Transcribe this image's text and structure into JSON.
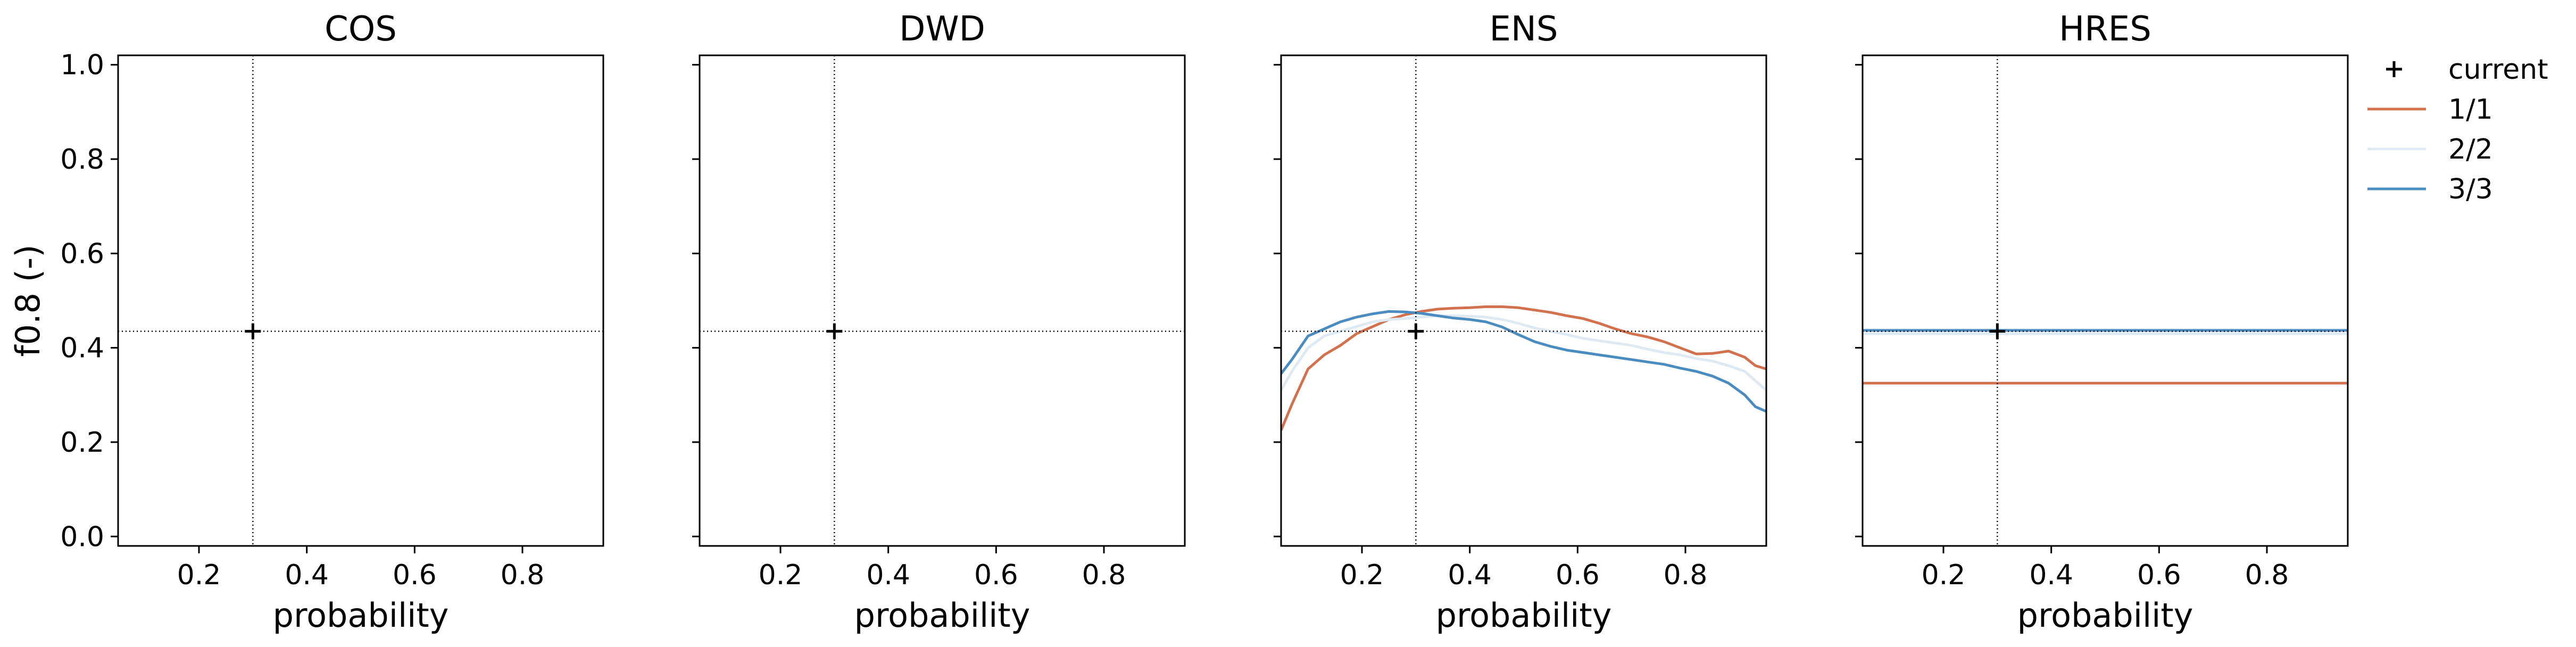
{
  "colors": {
    "axes": "#000000",
    "series_1_1": "#d2714d",
    "series_2_2": "#dfe9f2",
    "series_3_3": "#4a8cbf",
    "marker": "#000000"
  },
  "legend": {
    "placement": "right-outside-top",
    "items": [
      {
        "label": "current",
        "symbol": "plus",
        "color": "#000000"
      },
      {
        "label": "1/1",
        "symbol": "line",
        "color": "#d2714d"
      },
      {
        "label": "2/2",
        "symbol": "line",
        "color": "#dfe9f2"
      },
      {
        "label": "3/3",
        "symbol": "line",
        "color": "#4a8cbf"
      }
    ]
  },
  "chart_data": [
    {
      "type": "line",
      "title": "COS",
      "xlabel": "probability",
      "ylabel": "f0.8 (-)",
      "xlim": [
        0.05,
        0.95
      ],
      "ylim": [
        -0.02,
        1.02
      ],
      "xticks": [
        "0.2",
        "0.4",
        "0.6",
        "0.8"
      ],
      "yticks": [
        "0.0",
        "0.2",
        "0.4",
        "0.6",
        "0.8",
        "1.0"
      ],
      "show_yticklabels": true,
      "current": {
        "x": 0.3,
        "y": 0.435
      },
      "series": []
    },
    {
      "type": "line",
      "title": "DWD",
      "xlabel": "probability",
      "ylabel": "",
      "xlim": [
        0.05,
        0.95
      ],
      "ylim": [
        -0.02,
        1.02
      ],
      "xticks": [
        "0.2",
        "0.4",
        "0.6",
        "0.8"
      ],
      "yticks": [
        "0.0",
        "0.2",
        "0.4",
        "0.6",
        "0.8",
        "1.0"
      ],
      "show_yticklabels": false,
      "current": {
        "x": 0.3,
        "y": 0.435
      },
      "series": []
    },
    {
      "type": "line",
      "title": "ENS",
      "xlabel": "probability",
      "ylabel": "",
      "xlim": [
        0.05,
        0.95
      ],
      "ylim": [
        -0.02,
        1.02
      ],
      "xticks": [
        "0.2",
        "0.4",
        "0.6",
        "0.8"
      ],
      "yticks": [
        "0.0",
        "0.2",
        "0.4",
        "0.6",
        "0.8",
        "1.0"
      ],
      "show_yticklabels": false,
      "current": {
        "x": 0.3,
        "y": 0.435
      },
      "series": [
        {
          "name": "1/1",
          "color": "#d2714d",
          "x": [
            0.05,
            0.07,
            0.1,
            0.13,
            0.16,
            0.19,
            0.22,
            0.25,
            0.28,
            0.31,
            0.34,
            0.37,
            0.4,
            0.43,
            0.46,
            0.49,
            0.52,
            0.55,
            0.58,
            0.61,
            0.64,
            0.67,
            0.7,
            0.73,
            0.76,
            0.79,
            0.82,
            0.85,
            0.88,
            0.91,
            0.93,
            0.95
          ],
          "y": [
            0.225,
            0.28,
            0.355,
            0.385,
            0.405,
            0.43,
            0.445,
            0.46,
            0.47,
            0.477,
            0.482,
            0.484,
            0.485,
            0.487,
            0.487,
            0.485,
            0.48,
            0.475,
            0.468,
            0.462,
            0.452,
            0.44,
            0.43,
            0.423,
            0.413,
            0.4,
            0.387,
            0.388,
            0.393,
            0.38,
            0.362,
            0.355
          ]
        },
        {
          "name": "2/2",
          "color": "#dfe9f2",
          "x": [
            0.05,
            0.07,
            0.1,
            0.13,
            0.16,
            0.19,
            0.22,
            0.25,
            0.28,
            0.31,
            0.34,
            0.37,
            0.4,
            0.43,
            0.46,
            0.49,
            0.52,
            0.55,
            0.58,
            0.61,
            0.64,
            0.67,
            0.7,
            0.73,
            0.76,
            0.79,
            0.82,
            0.85,
            0.88,
            0.91,
            0.93,
            0.95
          ],
          "y": [
            0.31,
            0.35,
            0.4,
            0.425,
            0.435,
            0.445,
            0.455,
            0.46,
            0.462,
            0.465,
            0.468,
            0.468,
            0.467,
            0.465,
            0.46,
            0.452,
            0.442,
            0.435,
            0.428,
            0.42,
            0.415,
            0.41,
            0.405,
            0.397,
            0.39,
            0.385,
            0.377,
            0.372,
            0.362,
            0.35,
            0.33,
            0.31
          ]
        },
        {
          "name": "3/3",
          "color": "#4a8cbf",
          "x": [
            0.05,
            0.07,
            0.1,
            0.13,
            0.16,
            0.19,
            0.22,
            0.25,
            0.28,
            0.31,
            0.34,
            0.37,
            0.4,
            0.43,
            0.46,
            0.49,
            0.52,
            0.55,
            0.58,
            0.61,
            0.64,
            0.67,
            0.7,
            0.73,
            0.76,
            0.79,
            0.82,
            0.85,
            0.88,
            0.91,
            0.93,
            0.95
          ],
          "y": [
            0.345,
            0.375,
            0.425,
            0.44,
            0.455,
            0.465,
            0.472,
            0.477,
            0.476,
            0.473,
            0.468,
            0.463,
            0.46,
            0.455,
            0.444,
            0.428,
            0.413,
            0.403,
            0.395,
            0.39,
            0.385,
            0.38,
            0.375,
            0.37,
            0.365,
            0.357,
            0.35,
            0.34,
            0.325,
            0.3,
            0.275,
            0.265
          ]
        }
      ]
    },
    {
      "type": "line",
      "title": "HRES",
      "xlabel": "probability",
      "ylabel": "",
      "xlim": [
        0.05,
        0.95
      ],
      "ylim": [
        -0.02,
        1.02
      ],
      "xticks": [
        "0.2",
        "0.4",
        "0.6",
        "0.8"
      ],
      "yticks": [
        "0.0",
        "0.2",
        "0.4",
        "0.6",
        "0.8",
        "1.0"
      ],
      "show_yticklabels": false,
      "current": {
        "x": 0.3,
        "y": 0.435
      },
      "series": [
        {
          "name": "1/1",
          "color": "#d2714d",
          "x": [
            0.05,
            0.95
          ],
          "y": [
            0.325,
            0.325
          ]
        },
        {
          "name": "2/2",
          "color": "#dfe9f2",
          "x": [
            0.05,
            0.95
          ],
          "y": [
            0.43,
            0.43
          ]
        },
        {
          "name": "3/3",
          "color": "#4a8cbf",
          "x": [
            0.05,
            0.95
          ],
          "y": [
            0.437,
            0.437
          ]
        }
      ]
    }
  ]
}
